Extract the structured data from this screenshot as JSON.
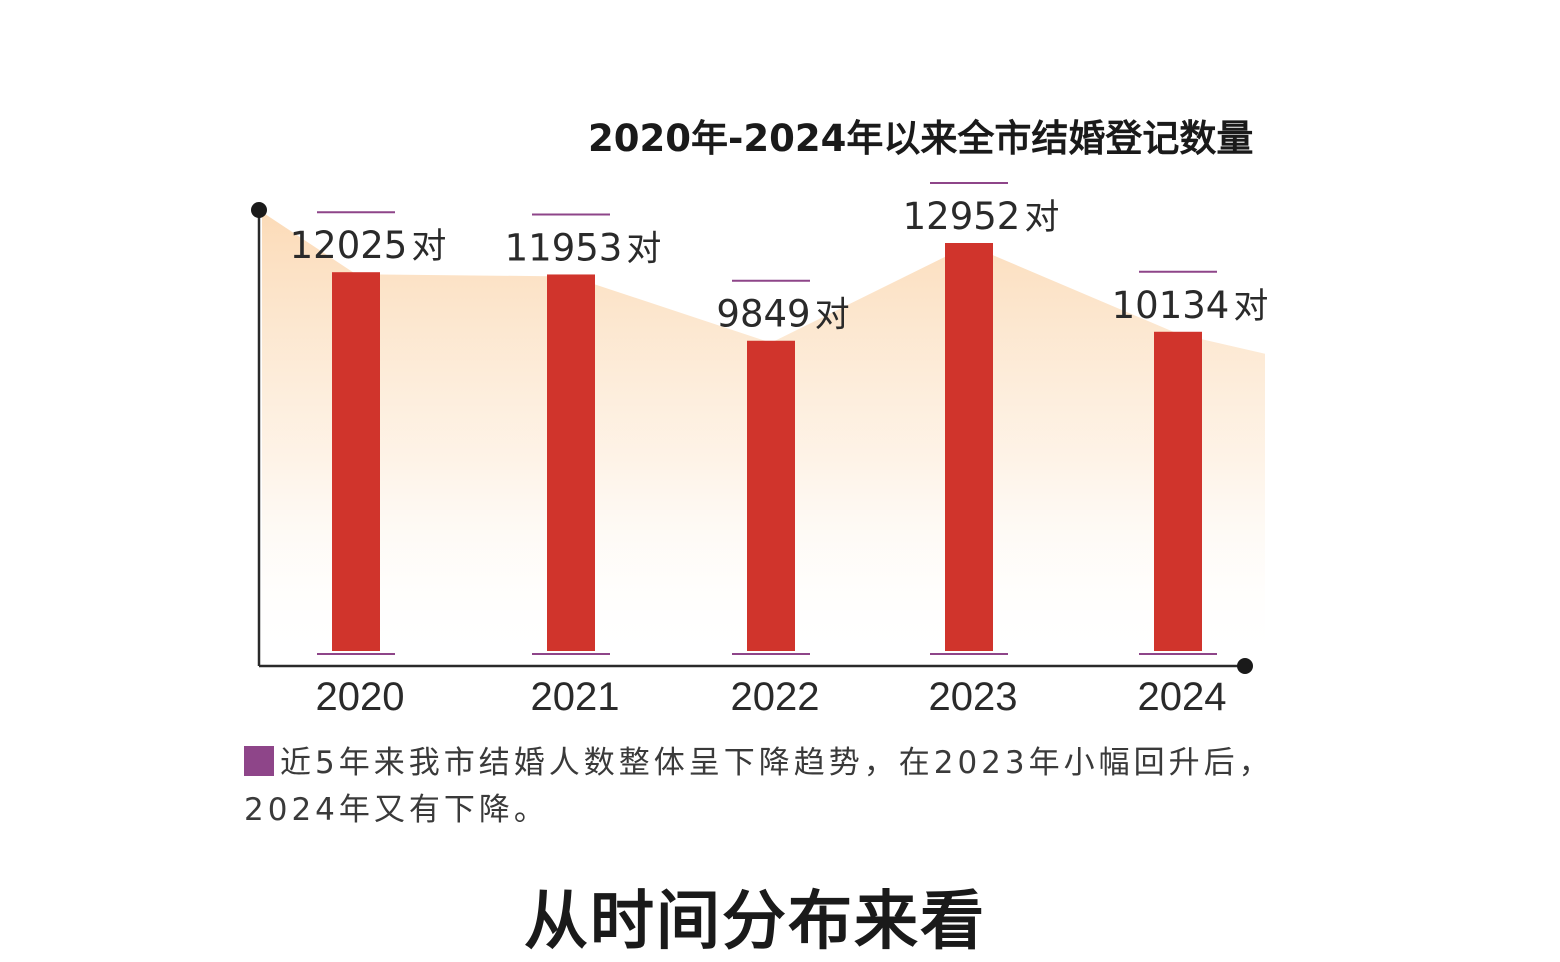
{
  "chart_data": {
    "type": "bar",
    "title": "2020年-2024年以来全市结婚登记数量",
    "categories": [
      "2020",
      "2021",
      "2022",
      "2023",
      "2024"
    ],
    "values": [
      12025,
      11953,
      9849,
      12952,
      10134
    ],
    "unit": "对",
    "ylim": [
      0,
      14000
    ],
    "grid": false,
    "colors": {
      "bar": "#d0342c",
      "accent_line": "#8e4589",
      "area_fill": "#fde3c8",
      "axis": "#2a2a2a"
    }
  },
  "note": {
    "text": "近5年来我市结婚人数整体呈下降趋势，在2023年小幅回升后，2024年又有下降。"
  },
  "section_heading": "从时间分布来看"
}
